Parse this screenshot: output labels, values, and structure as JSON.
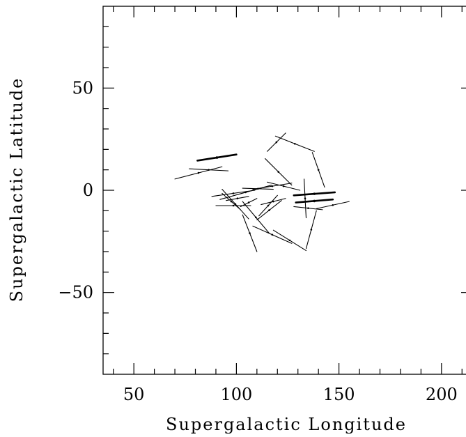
{
  "chart_data": {
    "type": "scatter",
    "title": "",
    "xlabel": "Supergalactic Longitude",
    "ylabel": "Supergalactic Latitude",
    "xlim": [
      35,
      215
    ],
    "ylim": [
      -90,
      90
    ],
    "x_ticks": [
      50,
      100,
      150,
      200
    ],
    "y_ticks": [
      -50,
      0,
      50
    ],
    "x_tick_labels": [
      "50",
      "100",
      "150",
      "200"
    ],
    "y_tick_labels": [
      "−50",
      "0",
      "50"
    ],
    "grid": false,
    "legend": "none",
    "mark_color": "#000000",
    "segments": [
      {
        "x1": 81,
        "y1": 14.5,
        "x2": 100,
        "y2": 17.5,
        "bold": true
      },
      {
        "x1": 70,
        "y1": 5.5,
        "x2": 93,
        "y2": 11.5,
        "bold": false
      },
      {
        "x1": 77,
        "y1": 10.5,
        "x2": 96,
        "y2": 9.5,
        "bold": false
      },
      {
        "x1": 115,
        "y1": 19,
        "x2": 124,
        "y2": 28,
        "bold": false
      },
      {
        "x1": 119,
        "y1": 26.5,
        "x2": 138,
        "y2": 19,
        "bold": false
      },
      {
        "x1": 137,
        "y1": 18.5,
        "x2": 143,
        "y2": 1.5,
        "bold": false
      },
      {
        "x1": 114,
        "y1": 15.5,
        "x2": 127,
        "y2": 2.5,
        "bold": false
      },
      {
        "x1": 128,
        "y1": -2.5,
        "x2": 148,
        "y2": -1,
        "bold": true
      },
      {
        "x1": 129,
        "y1": -6,
        "x2": 147,
        "y2": -4.5,
        "bold": true
      },
      {
        "x1": 133,
        "y1": 5.5,
        "x2": 134,
        "y2": -13.5,
        "bold": false
      },
      {
        "x1": 93,
        "y1": 0.5,
        "x2": 106,
        "y2": -14,
        "bold": false
      },
      {
        "x1": 93,
        "y1": -1.5,
        "x2": 102,
        "y2": -9.5,
        "bold": false
      },
      {
        "x1": 88,
        "y1": -3,
        "x2": 109,
        "y2": 0,
        "bold": false
      },
      {
        "x1": 92,
        "y1": -4.5,
        "x2": 117,
        "y2": 2.5,
        "bold": false
      },
      {
        "x1": 103,
        "y1": 1,
        "x2": 118,
        "y2": 0.5,
        "bold": false
      },
      {
        "x1": 108,
        "y1": 0.5,
        "x2": 127,
        "y2": 3.5,
        "bold": false
      },
      {
        "x1": 115,
        "y1": 4,
        "x2": 131,
        "y2": 0,
        "bold": false
      },
      {
        "x1": 95,
        "y1": -5,
        "x2": 106,
        "y2": -3,
        "bold": false
      },
      {
        "x1": 90,
        "y1": -7.5,
        "x2": 107,
        "y2": -7.5,
        "bold": false
      },
      {
        "x1": 102,
        "y1": -8,
        "x2": 110,
        "y2": -4,
        "bold": false
      },
      {
        "x1": 110,
        "y1": -14.5,
        "x2": 122,
        "y2": -5,
        "bold": false
      },
      {
        "x1": 111,
        "y1": -12.5,
        "x2": 120,
        "y2": -2.5,
        "bold": false
      },
      {
        "x1": 112,
        "y1": -7,
        "x2": 124,
        "y2": -4,
        "bold": false
      },
      {
        "x1": 103,
        "y1": -12,
        "x2": 110,
        "y2": -30,
        "bold": false
      },
      {
        "x1": 108,
        "y1": -17.5,
        "x2": 127,
        "y2": -26,
        "bold": false
      },
      {
        "x1": 103,
        "y1": -5.5,
        "x2": 116,
        "y2": -21,
        "bold": false
      },
      {
        "x1": 128,
        "y1": -8,
        "x2": 142,
        "y2": -9.5,
        "bold": false
      },
      {
        "x1": 139,
        "y1": -9,
        "x2": 155,
        "y2": -5.5,
        "bold": false
      },
      {
        "x1": 139,
        "y1": -10,
        "x2": 134,
        "y2": -28.5,
        "bold": false
      },
      {
        "x1": 118,
        "y1": -19.5,
        "x2": 134,
        "y2": -29.5,
        "bold": false
      }
    ]
  }
}
